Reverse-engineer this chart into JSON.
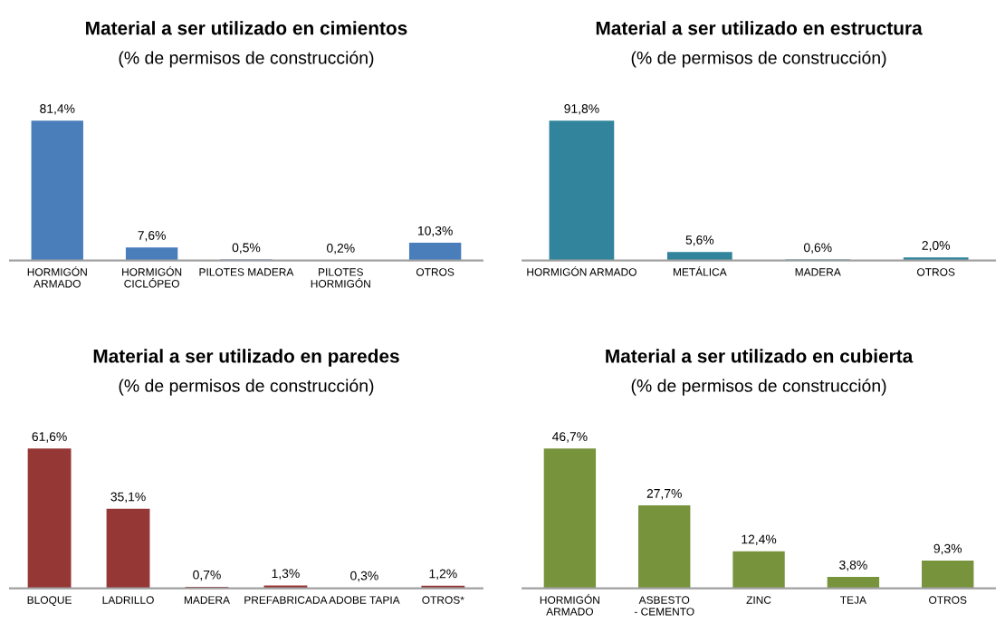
{
  "chart_data": [
    {
      "type": "bar",
      "title": "Material a ser utilizado en cimientos",
      "subtitle": "(% de permisos de construcción)",
      "categories": [
        "HORMIGÓN\nARMADO",
        "HORMIGÓN\nCICLÓPEO",
        "PILOTES MADERA",
        "PILOTES\nHORMIGÓN",
        "OTROS"
      ],
      "values": [
        81.4,
        7.6,
        0.5,
        0.2,
        10.3
      ],
      "value_labels": [
        "81,4%",
        "7,6%",
        "0,5%",
        "0,2%",
        "10,3%"
      ],
      "color": "#4a7ebb",
      "tick_labels": "x",
      "grid": false,
      "legend": false
    },
    {
      "type": "bar",
      "title": "Material a ser utilizado en estructura",
      "subtitle": "(% de permisos de construcción)",
      "categories": [
        "HORMIGÓN ARMADO",
        "METÁLICA",
        "MADERA",
        "OTROS"
      ],
      "values": [
        91.8,
        5.6,
        0.6,
        2.0
      ],
      "value_labels": [
        "91,8%",
        "5,6%",
        "0,6%",
        "2,0%"
      ],
      "color": "#31849b",
      "tick_labels": "x",
      "grid": false,
      "legend": false
    },
    {
      "type": "bar",
      "title": "Material a ser utilizado en paredes",
      "subtitle": "(% de permisos de construcción)",
      "categories": [
        "BLOQUE",
        "LADRILLO",
        "MADERA",
        "PREFABRICADA",
        "ADOBE TAPIA",
        "OTROS*"
      ],
      "values": [
        61.6,
        35.1,
        0.7,
        1.3,
        0.3,
        1.2
      ],
      "value_labels": [
        "61,6%",
        "35,1%",
        "0,7%",
        "1,3%",
        "0,3%",
        "1,2%"
      ],
      "color": "#953735",
      "tick_labels": "x",
      "grid": false,
      "legend": false
    },
    {
      "type": "bar",
      "title": "Material a ser utilizado en cubierta",
      "subtitle": "(% de permisos de construcción)",
      "categories": [
        "HORMIGÓN\nARMADO",
        "ASBESTO\n- CEMENTO",
        "ZINC",
        "TEJA",
        "OTROS"
      ],
      "values": [
        46.7,
        27.7,
        12.4,
        3.8,
        9.3
      ],
      "value_labels": [
        "46,7%",
        "27,7%",
        "12,4%",
        "3,8%",
        "9,3%"
      ],
      "color": "#77933c",
      "tick_labels": "x",
      "grid": false,
      "legend": false
    }
  ]
}
